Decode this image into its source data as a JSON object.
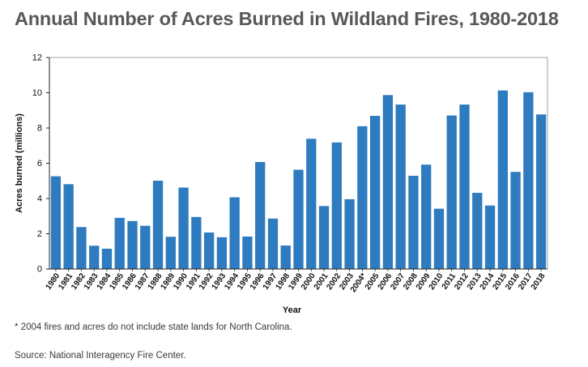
{
  "header": {
    "title": "Annual Number of Acres Burned in Wildland Fires, 1980-2018"
  },
  "footnotes": {
    "note": "* 2004 fires and acres do not include state lands for North Carolina.",
    "source": "Source: National Interagency Fire Center."
  },
  "chart_data": {
    "type": "bar",
    "title": "Annual Number of Acres Burned in Wildland Fires, 1980-2018",
    "xlabel": "Year",
    "ylabel": "Acres burned (millions)",
    "ylim": [
      0,
      12
    ],
    "yticks": [
      0,
      2,
      4,
      6,
      8,
      10,
      12
    ],
    "grid": false,
    "bar_color": "#2e7bc0",
    "categories": [
      "1980",
      "1981",
      "1982",
      "1983",
      "1984",
      "1985",
      "1986",
      "1987",
      "1988",
      "1989",
      "1990",
      "1991",
      "1992",
      "1993",
      "1994",
      "1995",
      "1996",
      "1997",
      "1998",
      "1999",
      "2000",
      "2001",
      "2002",
      "2003",
      "2004*",
      "2005",
      "2006",
      "2007",
      "2008",
      "2009",
      "2010",
      "2011",
      "2012",
      "2013",
      "2014",
      "2015",
      "2016",
      "2017",
      "2018"
    ],
    "values": [
      5.26,
      4.81,
      2.38,
      1.32,
      1.15,
      2.9,
      2.72,
      2.45,
      5.01,
      1.83,
      4.62,
      2.95,
      2.07,
      1.8,
      4.07,
      1.84,
      6.07,
      2.86,
      1.33,
      5.63,
      7.39,
      3.57,
      7.18,
      3.96,
      8.1,
      8.69,
      9.87,
      9.33,
      5.29,
      5.92,
      3.42,
      8.71,
      9.33,
      4.32,
      3.6,
      10.13,
      5.51,
      10.03,
      8.77
    ]
  }
}
